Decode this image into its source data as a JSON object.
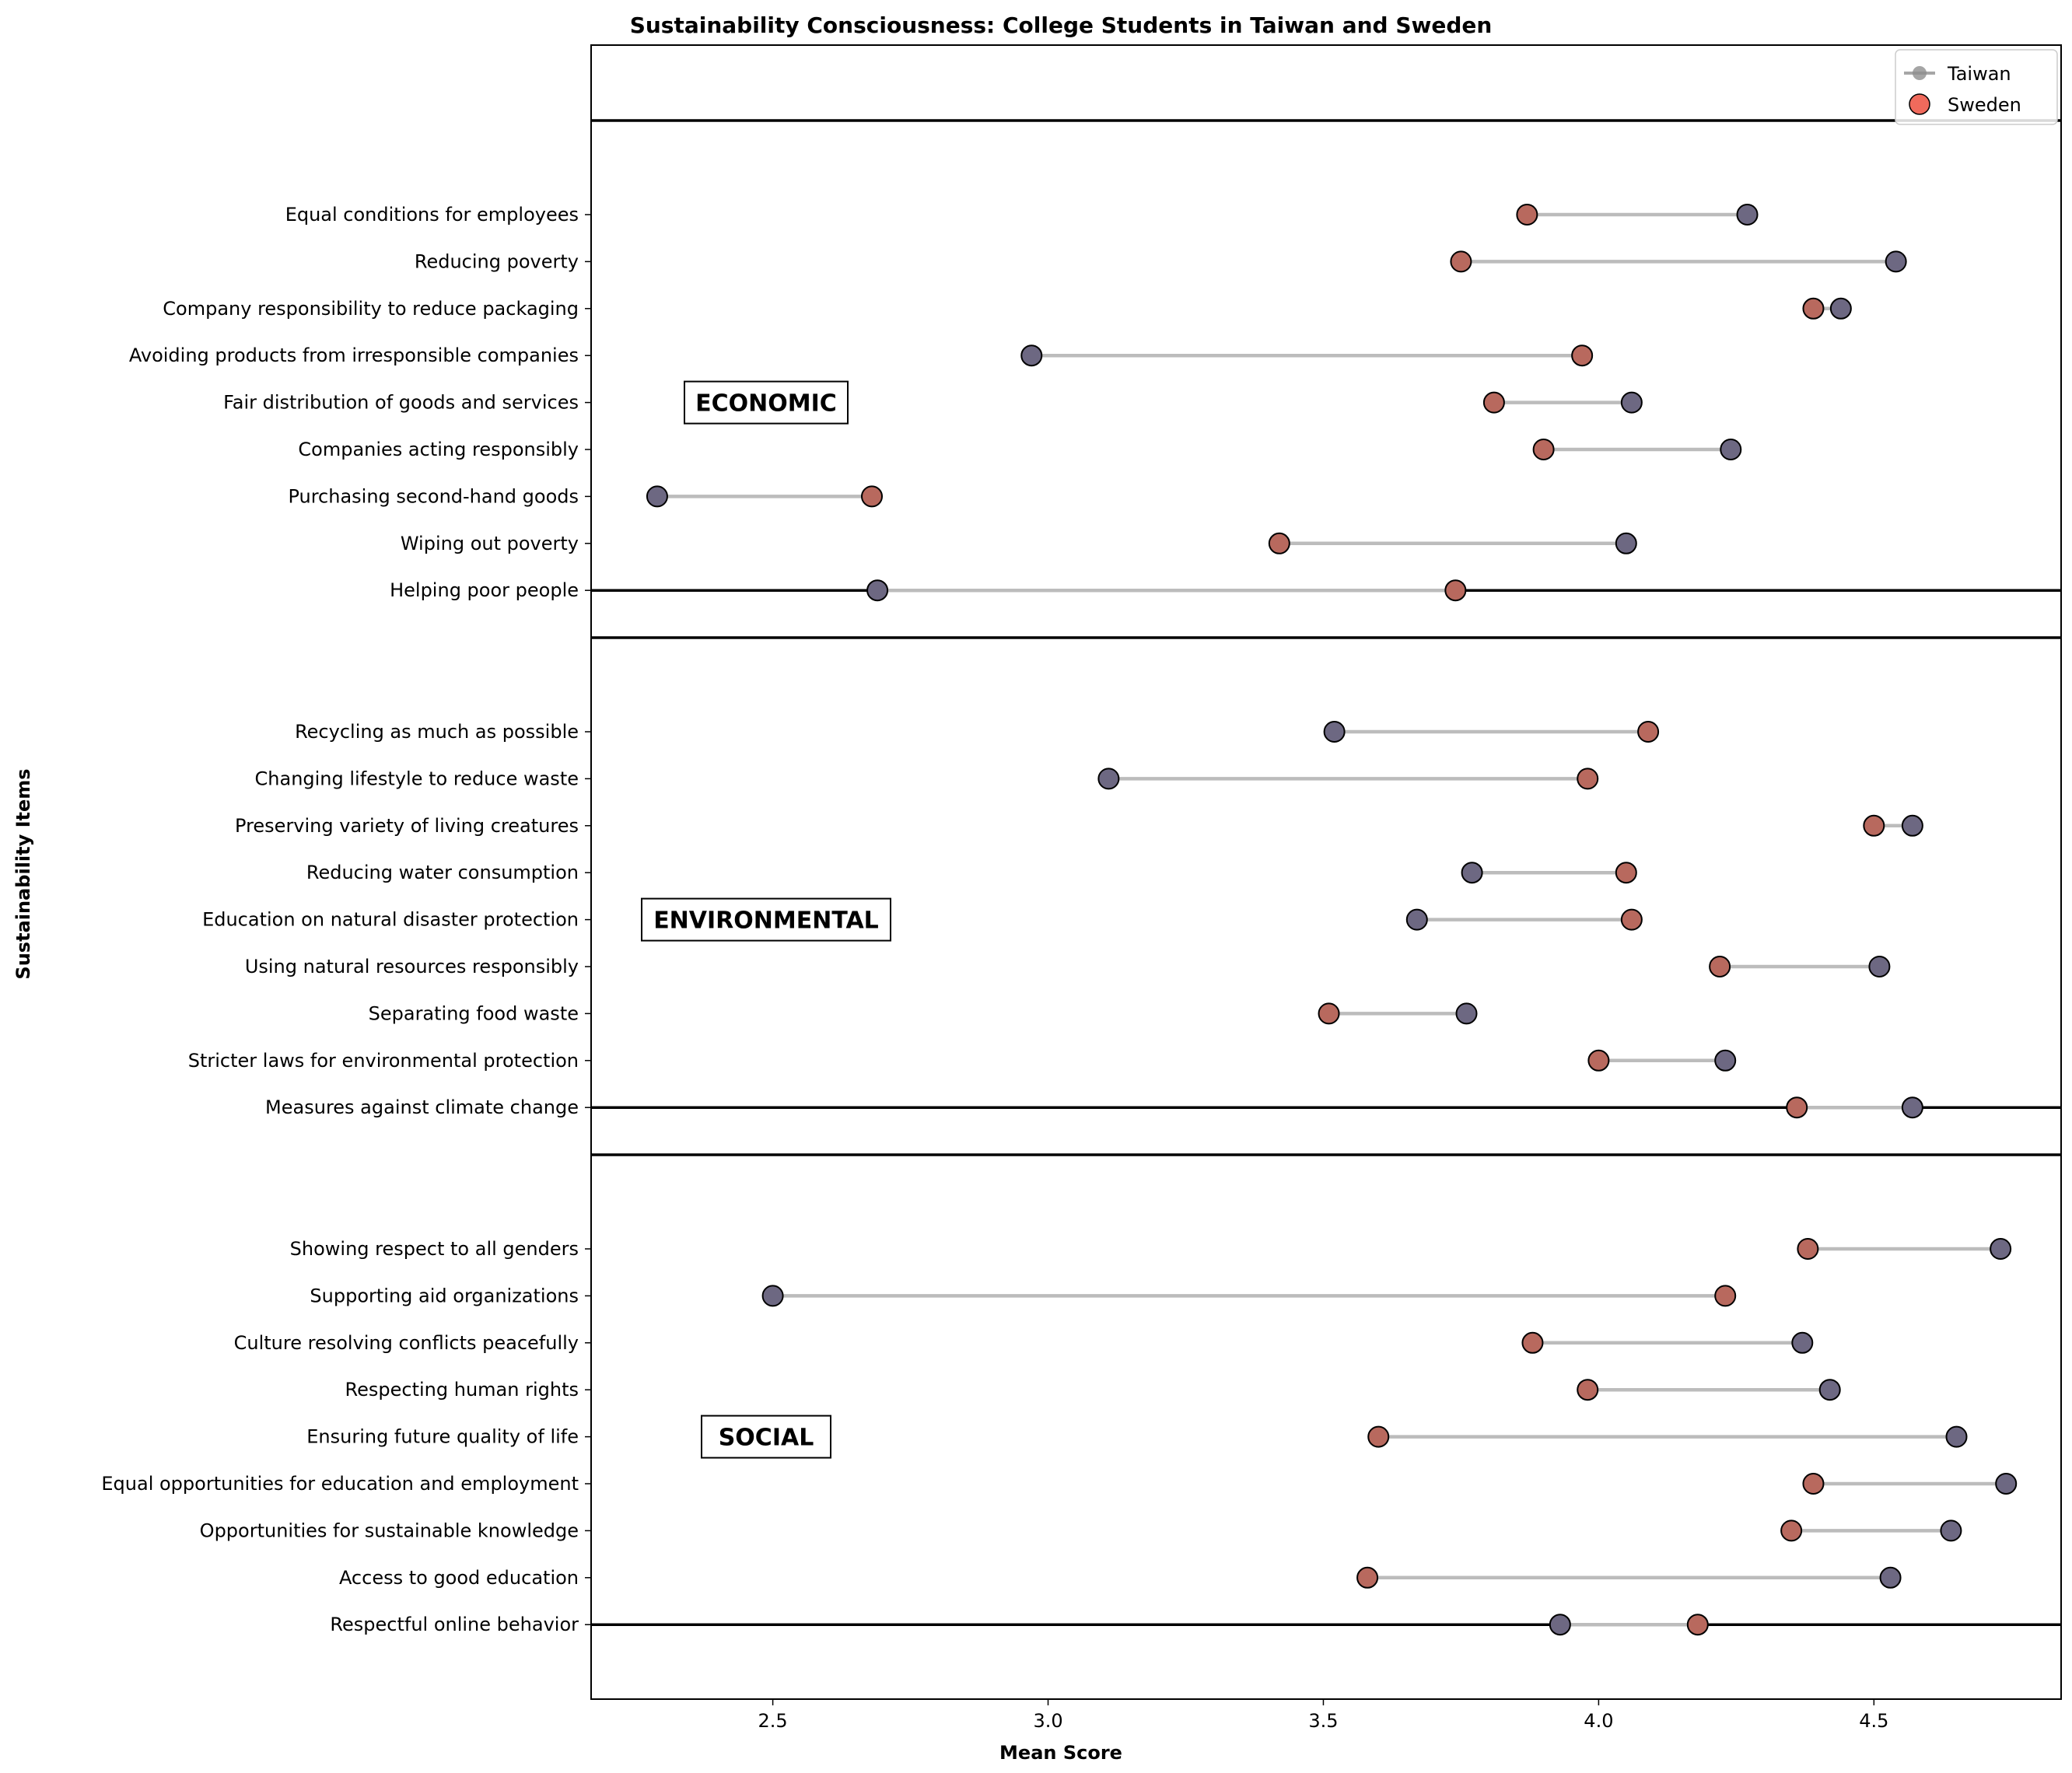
{
  "chart_data": {
    "type": "dumbbell",
    "title": "Sustainability Consciousness: College Students in Taiwan and Sweden",
    "xlabel": "Mean Score",
    "ylabel": "Sustainability Items",
    "xlim": [
      2.17,
      4.84
    ],
    "xticks": [
      "2.5",
      "3.0",
      "3.5",
      "4.0",
      "4.5"
    ],
    "legend": {
      "position": "top-right",
      "entries": [
        "Taiwan",
        "Sweden"
      ]
    },
    "colors": {
      "taiwan": "#6d6882",
      "sweden": "#b8695e",
      "sweden_legend": "#f06a5c",
      "connector": "#bcbcbc"
    },
    "groups": [
      {
        "name": "ECONOMIC",
        "items": [
          {
            "label": "Equal conditions for employees",
            "taiwan": 4.27,
            "sweden": 3.87
          },
          {
            "label": "Reducing poverty",
            "taiwan": 4.54,
            "sweden": 3.75
          },
          {
            "label": "Company responsibility to reduce packaging",
            "taiwan": 4.44,
            "sweden": 4.39
          },
          {
            "label": "Avoiding products from irresponsible companies",
            "taiwan": 2.97,
            "sweden": 3.97
          },
          {
            "label": "Fair distribution of goods and services",
            "taiwan": 4.06,
            "sweden": 3.81
          },
          {
            "label": "Companies acting responsibly",
            "taiwan": 4.24,
            "sweden": 3.9
          },
          {
            "label": "Purchasing second-hand goods",
            "taiwan": 2.29,
            "sweden": 2.68
          },
          {
            "label": "Wiping out poverty",
            "taiwan": 4.05,
            "sweden": 3.42
          },
          {
            "label": "Helping poor people",
            "taiwan": 2.69,
            "sweden": 3.74
          }
        ]
      },
      {
        "name": "ENVIRONMENTAL",
        "items": [
          {
            "label": "Recycling as much as possible",
            "taiwan": 3.52,
            "sweden": 4.09
          },
          {
            "label": "Changing lifestyle to reduce waste",
            "taiwan": 3.11,
            "sweden": 3.98
          },
          {
            "label": "Preserving variety of living creatures",
            "taiwan": 4.57,
            "sweden": 4.5
          },
          {
            "label": "Reducing water consumption",
            "taiwan": 3.77,
            "sweden": 4.05
          },
          {
            "label": "Education on natural disaster protection",
            "taiwan": 3.67,
            "sweden": 4.06
          },
          {
            "label": "Using natural resources responsibly",
            "taiwan": 4.51,
            "sweden": 4.22
          },
          {
            "label": "Separating food waste",
            "taiwan": 3.76,
            "sweden": 3.51
          },
          {
            "label": "Stricter laws for environmental protection",
            "taiwan": 4.23,
            "sweden": 4.0
          },
          {
            "label": "Measures against climate change",
            "taiwan": 4.57,
            "sweden": 4.36
          }
        ]
      },
      {
        "name": "SOCIAL",
        "items": [
          {
            "label": "Showing respect to all genders",
            "taiwan": 4.73,
            "sweden": 4.38
          },
          {
            "label": "Supporting aid organizations",
            "taiwan": 2.5,
            "sweden": 4.23
          },
          {
            "label": "Culture resolving conflicts peacefully",
            "taiwan": 4.37,
            "sweden": 3.88
          },
          {
            "label": "Respecting human rights",
            "taiwan": 4.42,
            "sweden": 3.98
          },
          {
            "label": "Ensuring future quality of life",
            "taiwan": 4.65,
            "sweden": 3.6
          },
          {
            "label": "Equal opportunities for education and employment",
            "taiwan": 4.74,
            "sweden": 4.39
          },
          {
            "label": "Opportunities for sustainable knowledge",
            "taiwan": 4.64,
            "sweden": 4.35
          },
          {
            "label": "Access to good education",
            "taiwan": 4.53,
            "sweden": 3.58
          },
          {
            "label": "Respectful online behavior",
            "taiwan": 3.93,
            "sweden": 4.18
          }
        ]
      }
    ]
  }
}
